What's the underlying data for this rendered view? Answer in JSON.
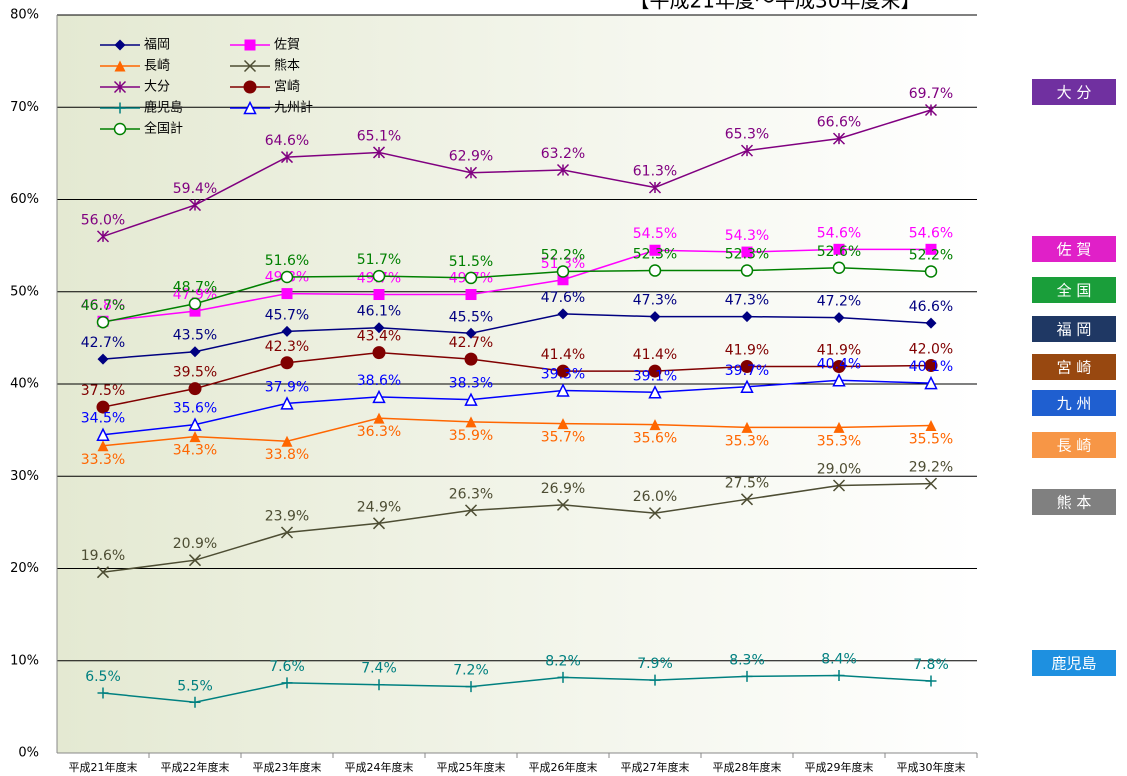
{
  "chart_data": {
    "type": "line",
    "title": "【平成21年度～平成30年度末】",
    "categories": [
      "平成21年度末",
      "平成22年度末",
      "平成23年度末",
      "平成24年度末",
      "平成25年度末",
      "平成26年度末",
      "平成27年度末",
      "平成28年度末",
      "平成29年度末",
      "平成30年度末"
    ],
    "ylim": [
      0,
      80
    ],
    "yticks": [
      {
        "value": 0,
        "label": "0%"
      },
      {
        "value": 10,
        "label": "10%"
      },
      {
        "value": 20,
        "label": "20%"
      },
      {
        "value": 30,
        "label": "30%"
      },
      {
        "value": 40,
        "label": "40%"
      },
      {
        "value": 50,
        "label": "50%"
      },
      {
        "value": 60,
        "label": "60%"
      },
      {
        "value": 70,
        "label": "70%"
      },
      {
        "value": 80,
        "label": "80%"
      }
    ],
    "grid": true,
    "legend": "top-left",
    "series": [
      {
        "name": "福岡",
        "color": "#000080",
        "marker": "diamond",
        "values": [
          42.7,
          43.5,
          45.7,
          46.1,
          45.5,
          47.6,
          47.3,
          47.3,
          47.2,
          46.6
        ],
        "value_labels": [
          "42.7%",
          "43.5%",
          "45.7%",
          "46.1%",
          "45.5%",
          "47.6%",
          "47.3%",
          "47.3%",
          "47.2%",
          "46.6%"
        ]
      },
      {
        "name": "佐賀",
        "color": "#ff00ff",
        "marker": "square",
        "values": [
          46.8,
          47.9,
          49.8,
          49.7,
          49.7,
          51.3,
          54.5,
          54.3,
          54.6,
          54.6
        ],
        "value_labels": [
          "46.8%",
          "47.9%",
          "49.8%",
          "49.7%",
          "49.7%",
          "51.3%",
          "54.5%",
          "54.3%",
          "54.6%",
          "54.6%"
        ]
      },
      {
        "name": "長崎",
        "color": "#ff6600",
        "marker": "triangle",
        "values": [
          33.3,
          34.3,
          33.8,
          36.3,
          35.9,
          35.7,
          35.6,
          35.3,
          35.3,
          35.5
        ],
        "value_labels": [
          "33.3%",
          "34.3%",
          "33.8%",
          "36.3%",
          "35.9%",
          "35.7%",
          "35.6%",
          "35.3%",
          "35.3%",
          "35.5%"
        ]
      },
      {
        "name": "熊本",
        "color": "#4d4d33",
        "marker": "x",
        "values": [
          19.6,
          20.9,
          23.9,
          24.9,
          26.3,
          26.9,
          26.0,
          27.5,
          29.0,
          29.2
        ],
        "value_labels": [
          "19.6%",
          "20.9%",
          "23.9%",
          "24.9%",
          "26.3%",
          "26.9%",
          "26.0%",
          "27.5%",
          "29.0%",
          "29.2%"
        ]
      },
      {
        "name": "大分",
        "color": "#800080",
        "marker": "star",
        "values": [
          56.0,
          59.4,
          64.6,
          65.1,
          62.9,
          63.2,
          61.3,
          65.3,
          66.6,
          69.7
        ],
        "value_labels": [
          "56.0%",
          "59.4%",
          "64.6%",
          "65.1%",
          "62.9%",
          "63.2%",
          "61.3%",
          "65.3%",
          "66.6%",
          "69.7%"
        ]
      },
      {
        "name": "宮崎",
        "color": "#800000",
        "marker": "circle",
        "values": [
          37.5,
          39.5,
          42.3,
          43.4,
          42.7,
          41.4,
          41.4,
          41.9,
          41.9,
          42.0
        ],
        "value_labels": [
          "37.5%",
          "39.5%",
          "42.3%",
          "43.4%",
          "42.7%",
          "41.4%",
          "41.4%",
          "41.9%",
          "41.9%",
          "42.0%"
        ]
      },
      {
        "name": "鹿児島",
        "color": "#008080",
        "marker": "plus",
        "values": [
          6.5,
          5.5,
          7.6,
          7.4,
          7.2,
          8.2,
          7.9,
          8.3,
          8.4,
          7.8
        ],
        "value_labels": [
          "6.5%",
          "5.5%",
          "7.6%",
          "7.4%",
          "7.2%",
          "8.2%",
          "7.9%",
          "8.3%",
          "8.4%",
          "7.8%"
        ]
      },
      {
        "name": "九州計",
        "color": "#0000ff",
        "marker": "open-triangle",
        "values": [
          34.5,
          35.6,
          37.9,
          38.6,
          38.3,
          39.3,
          39.1,
          39.7,
          40.4,
          40.1
        ],
        "value_labels": [
          "34.5%",
          "35.6%",
          "37.9%",
          "38.6%",
          "38.3%",
          "39.3%",
          "39.1%",
          "39.7%",
          "40.4%",
          "40.1%"
        ]
      },
      {
        "name": "全国計",
        "color": "#008000",
        "marker": "open-circle",
        "values": [
          46.7,
          48.7,
          51.6,
          51.7,
          51.5,
          52.2,
          52.3,
          52.3,
          52.6,
          52.2
        ],
        "value_labels": [
          "46.7%",
          "48.7%",
          "51.6%",
          "51.7%",
          "51.5%",
          "52.2%",
          "52.3%",
          "52.3%",
          "52.6%",
          "52.2%"
        ]
      }
    ],
    "side_legend": [
      {
        "label": "大 分",
        "color": "#7030a0"
      },
      {
        "label": "佐 賀",
        "color": "#e020c8"
      },
      {
        "label": "全 国",
        "color": "#1a9e3a"
      },
      {
        "label": "福 岡",
        "color": "#1f3864"
      },
      {
        "label": "宮 崎",
        "color": "#984810"
      },
      {
        "label": "九 州",
        "color": "#1f5fd0"
      },
      {
        "label": "長 崎",
        "color": "#f79646"
      },
      {
        "label": "熊 本",
        "color": "#808080"
      },
      {
        "label": "鹿児島",
        "color": "#1e90e0"
      }
    ]
  }
}
